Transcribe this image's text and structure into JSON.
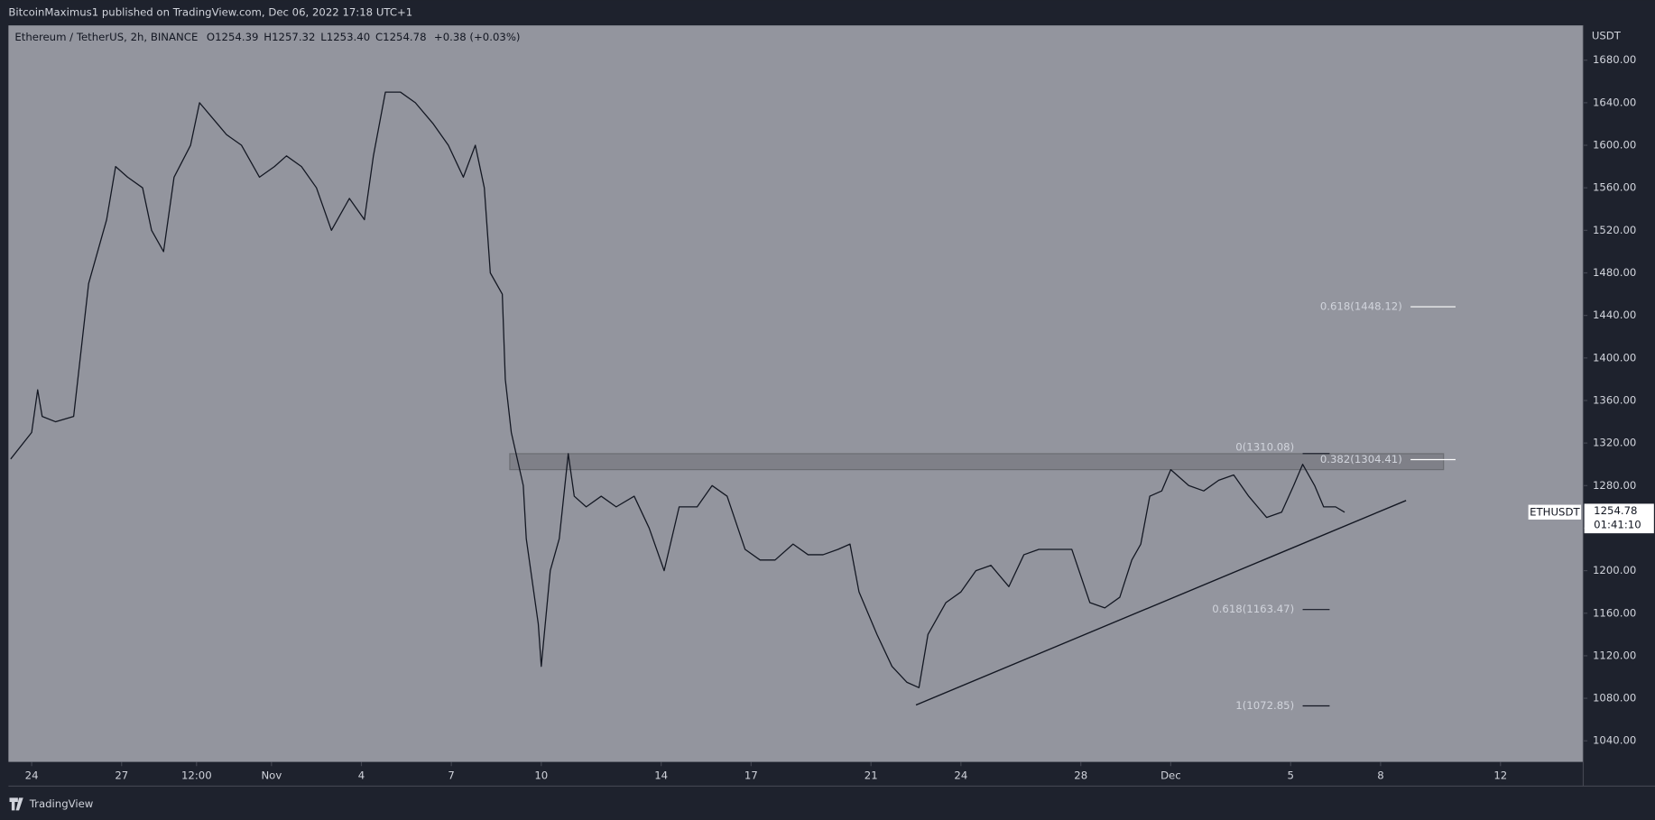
{
  "header": {
    "attribution": "BitcoinMaximus1 published on TradingView.com, Dec 06, 2022 17:18 UTC+1",
    "brand": "TradingView"
  },
  "chart_data": {
    "type": "line",
    "symbol": "Ethereum / TetherUS, 2h, BINANCE",
    "ohlc": [
      [
        "O",
        "1254.39"
      ],
      [
        "H",
        "1257.32"
      ],
      [
        "L",
        "1253.40"
      ],
      [
        "C",
        "1254.78"
      ]
    ],
    "change": "+0.38 (+0.03%)",
    "axis_unit": "USDT",
    "ticker": "ETHUSDT",
    "last_price": "1254.78",
    "countdown": "01:41:10",
    "color": "#131722",
    "background": "#93959e",
    "x": [
      -0.7,
      0,
      0.2,
      0.35,
      0.8,
      1.4,
      1.7,
      1.9,
      2.5,
      2.8,
      3.2,
      3.7,
      4.0,
      4.4,
      4.75,
      5.3,
      5.6,
      6.2,
      6.5,
      7.0,
      7.6,
      8.1,
      8.5,
      9.0,
      9.5,
      10.0,
      10.6,
      11.1,
      11.4,
      11.8,
      12.3,
      12.8,
      13.4,
      13.9,
      14.4,
      14.8,
      15.1,
      15.3,
      15.7,
      15.8,
      16.0,
      16.4,
      16.5,
      16.9,
      17.0,
      17.3,
      17.6,
      17.9,
      18.1,
      18.5,
      19.0,
      19.5,
      20.1,
      20.6,
      21.1,
      21.6,
      22.2,
      22.7,
      23.2,
      23.8,
      24.3,
      24.8,
      25.4,
      25.9,
      26.4,
      26.9,
      27.3,
      27.6,
      28.2,
      28.7,
      29.2,
      29.6,
      29.9,
      30.5,
      31.0,
      31.5,
      32.0,
      32.6,
      33.1,
      33.6,
      34.2,
      34.7,
      35.3,
      35.8,
      36.3,
      36.7,
      37.0,
      37.3,
      37.7,
      38.0,
      38.6,
      39.1,
      39.6,
      40.1,
      40.6,
      41.2,
      41.7,
      42.1,
      42.4,
      42.8,
      43.1,
      43.5,
      43.8
    ],
    "values": [
      1305,
      1330,
      1370,
      1345,
      1340,
      1345,
      1420,
      1470,
      1530,
      1580,
      1570,
      1560,
      1520,
      1500,
      1570,
      1600,
      1640,
      1620,
      1610,
      1600,
      1570,
      1580,
      1590,
      1580,
      1560,
      1520,
      1550,
      1530,
      1590,
      1650,
      1650,
      1640,
      1620,
      1600,
      1570,
      1600,
      1560,
      1480,
      1460,
      1380,
      1330,
      1280,
      1230,
      1150,
      1110,
      1200,
      1230,
      1310,
      1270,
      1260,
      1270,
      1260,
      1270,
      1240,
      1200,
      1260,
      1260,
      1280,
      1270,
      1220,
      1210,
      1210,
      1225,
      1215,
      1215,
      1220,
      1225,
      1180,
      1140,
      1110,
      1095,
      1090,
      1140,
      1170,
      1180,
      1200,
      1205,
      1185,
      1215,
      1220,
      1220,
      1220,
      1170,
      1165,
      1175,
      1210,
      1225,
      1270,
      1275,
      1295,
      1280,
      1275,
      1285,
      1290,
      1270,
      1250,
      1255,
      1280,
      1300,
      1280,
      1260,
      1260,
      1255
    ],
    "xlim": [
      -0.775,
      51.76
    ],
    "ylim": [
      1020.2,
      1712.7
    ],
    "xticks": [
      {
        "value": 0,
        "label": "24"
      },
      {
        "value": 3,
        "label": "27"
      },
      {
        "value": 5.5,
        "label": "12:00"
      },
      {
        "value": 8,
        "label": "Nov"
      },
      {
        "value": 11,
        "label": "4"
      },
      {
        "value": 14,
        "label": "7"
      },
      {
        "value": 17,
        "label": "10"
      },
      {
        "value": 21,
        "label": "14"
      },
      {
        "value": 24,
        "label": "17"
      },
      {
        "value": 28,
        "label": "21"
      },
      {
        "value": 31,
        "label": "24"
      },
      {
        "value": 35,
        "label": "28"
      },
      {
        "value": 38,
        "label": "Dec"
      },
      {
        "value": 42,
        "label": "5"
      },
      {
        "value": 45,
        "label": "8"
      },
      {
        "value": 49,
        "label": "12"
      }
    ],
    "yticks": [
      {
        "value": 1040,
        "label": "1040.00"
      },
      {
        "value": 1080,
        "label": "1080.00"
      },
      {
        "value": 1120,
        "label": "1120.00"
      },
      {
        "value": 1160,
        "label": "1160.00"
      },
      {
        "value": 1200,
        "label": "1200.00"
      },
      {
        "value": 1240,
        "label": "1240.00"
      },
      {
        "value": 1280,
        "label": "1280.00"
      },
      {
        "value": 1320,
        "label": "1320.00"
      },
      {
        "value": 1360,
        "label": "1360.00"
      },
      {
        "value": 1400,
        "label": "1400.00"
      },
      {
        "value": 1440,
        "label": "1440.00"
      },
      {
        "value": 1480,
        "label": "1480.00"
      },
      {
        "value": 1520,
        "label": "1520.00"
      },
      {
        "value": 1560,
        "label": "1560.00"
      },
      {
        "value": 1600,
        "label": "1600.00"
      },
      {
        "value": 1640,
        "label": "1640.00"
      },
      {
        "value": 1680,
        "label": "1680.00"
      }
    ],
    "band": {
      "range": [
        1295,
        1310
      ],
      "x": [
        15.95,
        47.1
      ],
      "color": "#7b7d84"
    },
    "trendline": {
      "x": [
        29.5,
        45.85
      ],
      "values": [
        1073.7,
        1266
      ]
    },
    "levels": [
      {
        "label": "0.618(1448.12)",
        "value": 1448.12,
        "x": [
          46.0,
          47.5
        ]
      },
      {
        "label": "0.382(1304.41)",
        "value": 1304.41,
        "x": [
          46.0,
          47.5
        ]
      },
      {
        "label": "0(1310.08)",
        "value": 1310.08,
        "x": [
          42.4,
          43.3
        ]
      },
      {
        "label": "0.618(1163.47)",
        "value": 1163.47,
        "x": [
          42.4,
          43.3
        ]
      },
      {
        "label": "1(1072.85)",
        "value": 1072.85,
        "x": [
          42.4,
          43.3
        ]
      }
    ]
  }
}
